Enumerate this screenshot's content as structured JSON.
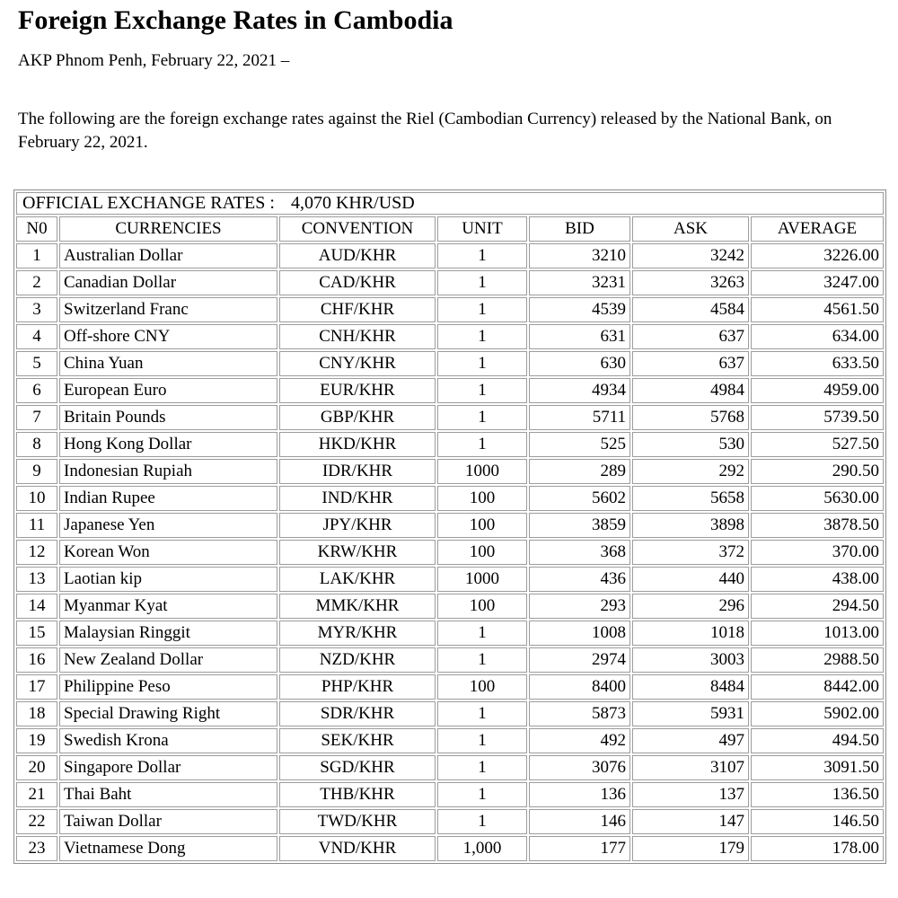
{
  "header": {
    "title": "Foreign Exchange Rates in Cambodia",
    "byline": "AKP Phnom Penh, February 22, 2021 –",
    "intro": "The following are the foreign exchange rates against the Riel (Cambodian Currency) released by the National Bank, on February 22, 2021."
  },
  "table": {
    "official_label": "OFFICIAL EXCHANGE RATES :",
    "usd_rate": "4,070 KHR/USD",
    "columns": [
      "N0",
      "CURRENCIES",
      "CONVENTION",
      "UNIT",
      "BID",
      "ASK",
      "AVERAGE"
    ],
    "rows": [
      {
        "no": "1",
        "currency": "Australian Dollar",
        "convention": "AUD/KHR",
        "unit": "1",
        "bid": "3210",
        "ask": "3242",
        "average": "3226.00"
      },
      {
        "no": "2",
        "currency": "Canadian Dollar",
        "convention": "CAD/KHR",
        "unit": "1",
        "bid": "3231",
        "ask": "3263",
        "average": "3247.00"
      },
      {
        "no": "3",
        "currency": "Switzerland Franc",
        "convention": "CHF/KHR",
        "unit": "1",
        "bid": "4539",
        "ask": "4584",
        "average": "4561.50"
      },
      {
        "no": "4",
        "currency": "Off-shore CNY",
        "convention": "CNH/KHR",
        "unit": "1",
        "bid": "631",
        "ask": "637",
        "average": "634.00"
      },
      {
        "no": "5",
        "currency": "China Yuan",
        "convention": "CNY/KHR",
        "unit": "1",
        "bid": "630",
        "ask": "637",
        "average": "633.50"
      },
      {
        "no": "6",
        "currency": "European Euro",
        "convention": "EUR/KHR",
        "unit": "1",
        "bid": "4934",
        "ask": "4984",
        "average": "4959.00"
      },
      {
        "no": "7",
        "currency": "Britain Pounds",
        "convention": "GBP/KHR",
        "unit": "1",
        "bid": "5711",
        "ask": "5768",
        "average": "5739.50"
      },
      {
        "no": "8",
        "currency": "Hong Kong Dollar",
        "convention": "HKD/KHR",
        "unit": "1",
        "bid": "525",
        "ask": "530",
        "average": "527.50"
      },
      {
        "no": "9",
        "currency": "Indonesian Rupiah",
        "convention": "IDR/KHR",
        "unit": "1000",
        "bid": "289",
        "ask": "292",
        "average": "290.50"
      },
      {
        "no": "10",
        "currency": "Indian Rupee",
        "convention": "IND/KHR",
        "unit": "100",
        "bid": "5602",
        "ask": "5658",
        "average": "5630.00"
      },
      {
        "no": "11",
        "currency": "Japanese Yen",
        "convention": "JPY/KHR",
        "unit": "100",
        "bid": "3859",
        "ask": "3898",
        "average": "3878.50"
      },
      {
        "no": "12",
        "currency": "Korean Won",
        "convention": "KRW/KHR",
        "unit": "100",
        "bid": "368",
        "ask": "372",
        "average": "370.00"
      },
      {
        "no": "13",
        "currency": "Laotian kip",
        "convention": "LAK/KHR",
        "unit": "1000",
        "bid": "436",
        "ask": "440",
        "average": "438.00"
      },
      {
        "no": "14",
        "currency": "Myanmar Kyat",
        "convention": "MMK/KHR",
        "unit": "100",
        "bid": "293",
        "ask": "296",
        "average": "294.50"
      },
      {
        "no": "15",
        "currency": "Malaysian Ringgit",
        "convention": "MYR/KHR",
        "unit": "1",
        "bid": "1008",
        "ask": "1018",
        "average": "1013.00"
      },
      {
        "no": "16",
        "currency": "New Zealand Dollar",
        "convention": "NZD/KHR",
        "unit": "1",
        "bid": "2974",
        "ask": "3003",
        "average": "2988.50"
      },
      {
        "no": "17",
        "currency": "Philippine Peso",
        "convention": "PHP/KHR",
        "unit": "100",
        "bid": "8400",
        "ask": "8484",
        "average": "8442.00"
      },
      {
        "no": "18",
        "currency": "Special Drawing Right",
        "convention": "SDR/KHR",
        "unit": "1",
        "bid": "5873",
        "ask": "5931",
        "average": "5902.00"
      },
      {
        "no": "19",
        "currency": "Swedish Krona",
        "convention": "SEK/KHR",
        "unit": "1",
        "bid": "492",
        "ask": "497",
        "average": "494.50"
      },
      {
        "no": "20",
        "currency": "Singapore Dollar",
        "convention": "SGD/KHR",
        "unit": "1",
        "bid": "3076",
        "ask": "3107",
        "average": "3091.50"
      },
      {
        "no": "21",
        "currency": "Thai Baht",
        "convention": "THB/KHR",
        "unit": "1",
        "bid": "136",
        "ask": "137",
        "average": "136.50"
      },
      {
        "no": "22",
        "currency": "Taiwan Dollar",
        "convention": "TWD/KHR",
        "unit": "1",
        "bid": "146",
        "ask": "147",
        "average": "146.50"
      },
      {
        "no": "23",
        "currency": "Vietnamese Dong",
        "convention": "VND/KHR",
        "unit": "1,000",
        "bid": "177",
        "ask": "179",
        "average": "178.00"
      }
    ]
  },
  "colors": {
    "text": "#000000",
    "background": "#ffffff",
    "table_border": "#8c8c8c",
    "cell_border": "#9c9c9c"
  }
}
